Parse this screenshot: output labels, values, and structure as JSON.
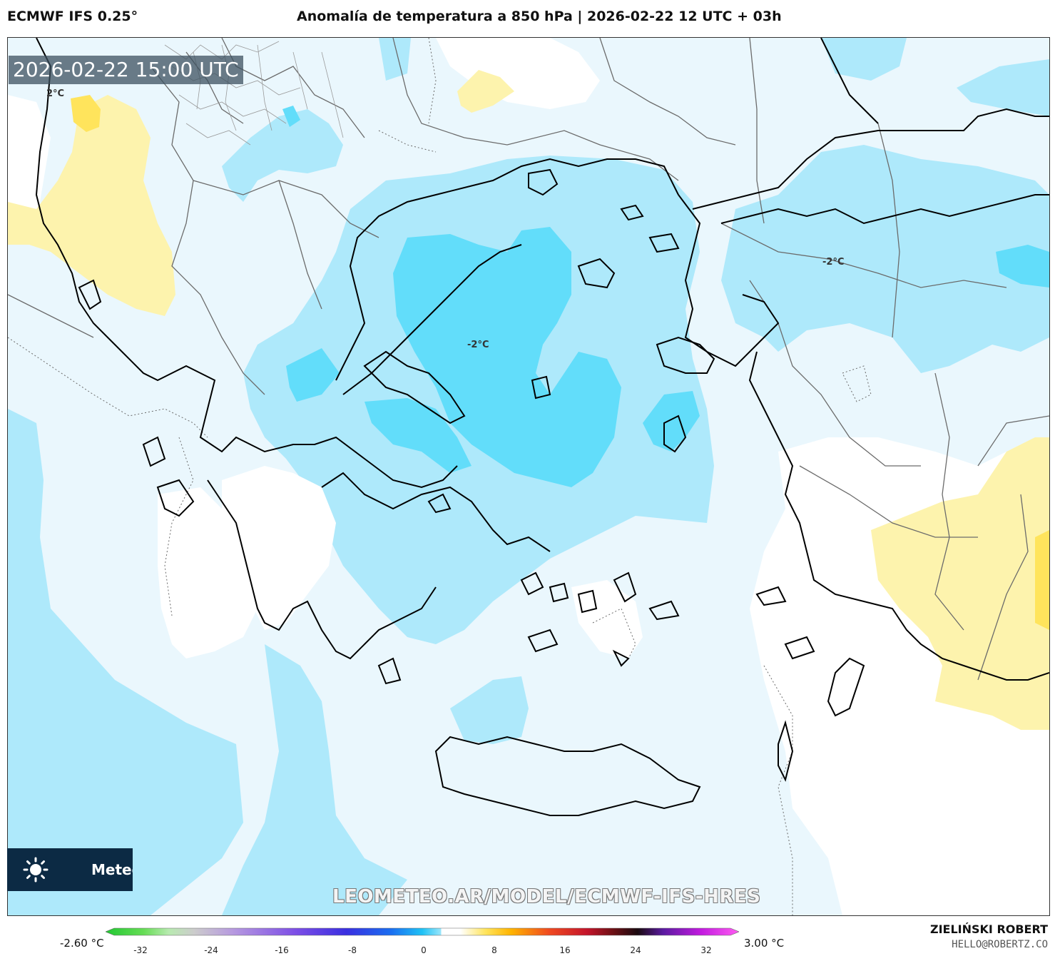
{
  "header": {
    "model": "ECMWF IFS 0.25°",
    "title": "Anomalía de temperatura a 850 hPa | 2026-02-22 12 UTC + 03h"
  },
  "map": {
    "timestamp": "2026-02-22 15:00 UTC",
    "isolines": [
      {
        "label": "2°C"
      },
      {
        "label": "-2°C"
      },
      {
        "label": "-2°C"
      }
    ],
    "colors": {
      "very_light_blue": "#eaf7fd",
      "light_blue": "#aee9fb",
      "medium_blue": "#62ddfa",
      "white": "#ffffff",
      "light_yellow": "#fdf3ad",
      "yellow": "#ffe45c"
    }
  },
  "watermark": {
    "logo_text": "Meteo",
    "url": "LEOMETEO.AR/MODEL/ECMWF-IFS-HRES"
  },
  "colorbar": {
    "min_label": "-2.60 °C",
    "max_label": "3.00 °C",
    "ticks": [
      "-32",
      "-24",
      "-16",
      "-8",
      "0",
      "8",
      "16",
      "24",
      "32"
    ]
  },
  "credit": {
    "author": "ZIELIŃSKI ROBERT",
    "email": "HELLO@ROBERTZ.CO"
  }
}
